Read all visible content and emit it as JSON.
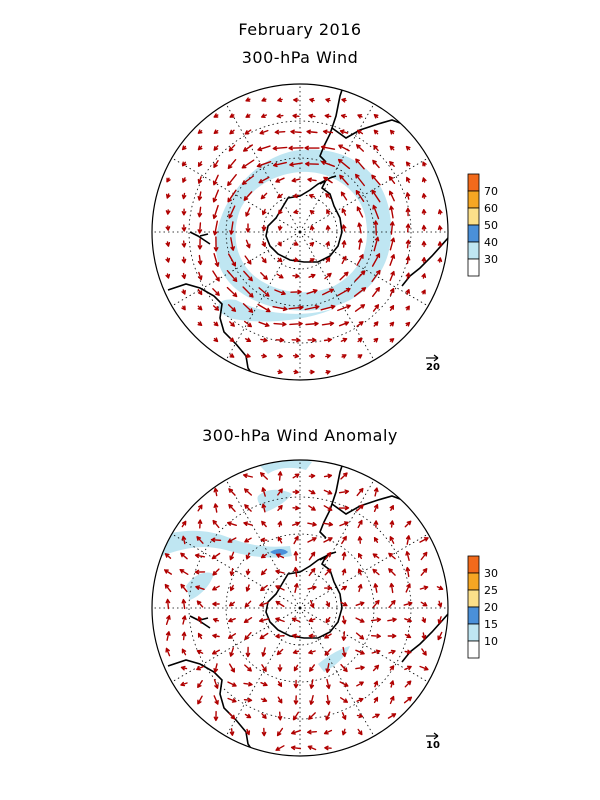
{
  "title": "February 2016",
  "panels": [
    {
      "id": "wind",
      "subtitle": "300-hPa Wind",
      "reference_vector_label": "20",
      "colorbar": {
        "ticks": [
          "70",
          "60",
          "50",
          "40",
          "30"
        ],
        "colors": [
          "#f26a1b",
          "#f5a623",
          "#fce08a",
          "#4a90d9",
          "#bfe6f2",
          "#ffffff"
        ]
      },
      "shading_color": "#bfe6f2",
      "shading_threshold": "30"
    },
    {
      "id": "anomaly",
      "subtitle": "300-hPa Wind Anomaly",
      "reference_vector_label": "10",
      "colorbar": {
        "ticks": [
          "30",
          "25",
          "20",
          "15",
          "10"
        ],
        "colors": [
          "#f26a1b",
          "#f5a623",
          "#fce08a",
          "#4a90d9",
          "#bfe6f2",
          "#ffffff"
        ]
      },
      "shading_color": "#bfe6f2",
      "shading_threshold": "10"
    }
  ],
  "arrow_color": "#b00000"
}
